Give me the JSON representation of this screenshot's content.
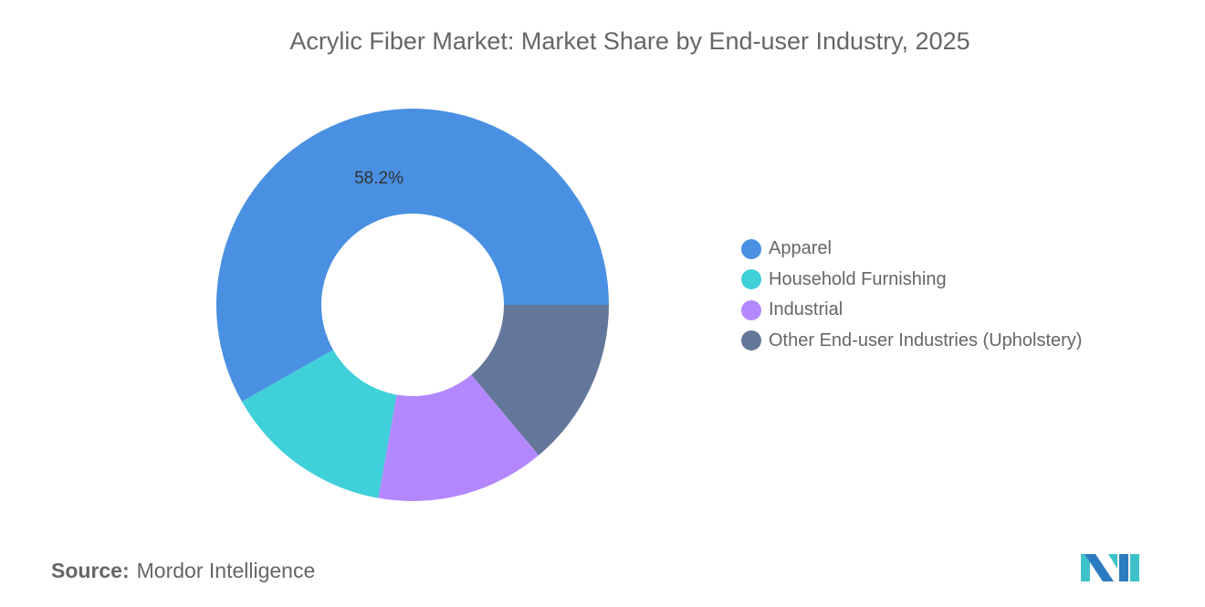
{
  "title": "Acrylic Fiber Market: Market Share by End-user Industry, 2025",
  "chart_data": {
    "type": "pie",
    "donut": true,
    "title": "Acrylic Fiber Market: Market Share by End-user Industry, 2025",
    "categories": [
      "Apparel",
      "Household Furnishing",
      "Industrial",
      "Other End-user Industries (Upholstery)"
    ],
    "values": [
      58.2,
      14.0,
      13.9,
      13.9
    ],
    "unit": "%",
    "colors": [
      "#4a90e2",
      "#3fd0d9",
      "#b388ff",
      "#63779a"
    ],
    "data_labels": [
      "58.2%",
      "",
      "",
      ""
    ],
    "legend_position": "right"
  },
  "source": {
    "label": "Source:",
    "value": "Mordor Intelligence"
  }
}
